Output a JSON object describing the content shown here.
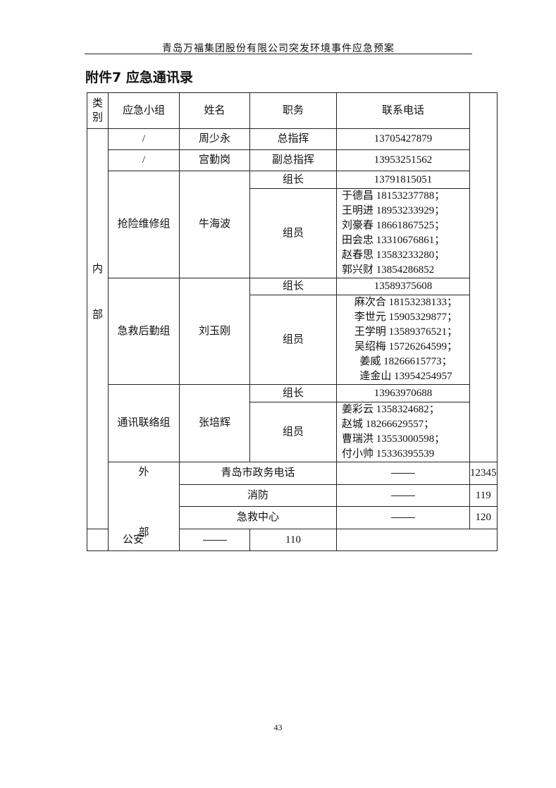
{
  "header": "青岛万福集团股份有限公司突发环境事件应急预案",
  "title": "附件7 应急通讯录",
  "columns": [
    "类别",
    "应急小组",
    "姓名",
    "职务",
    "联系电话"
  ],
  "internal": {
    "category": [
      "内",
      "部"
    ],
    "rows": [
      {
        "group": "/",
        "name": "周少永",
        "role": "总指挥",
        "phone": "13705427879"
      },
      {
        "group": "/",
        "name": "宫勤岗",
        "role": "副总指挥",
        "phone": "13953251562"
      }
    ],
    "groups": [
      {
        "group": "抢险维修组",
        "name": "牛海波",
        "leader_role": "组长",
        "leader_phone": "13791815051",
        "member_role": "组员",
        "members": [
          "于德昌 18153237788；",
          "王明进 18953233929；",
          "刘豪春 18661867525；",
          "田会忠 13310676861；",
          "赵春思 13583233280；",
          "郭兴财 13854286852"
        ]
      },
      {
        "group": "急救后勤组",
        "name": "刘玉刚",
        "leader_role": "组长",
        "leader_phone": "13589375608",
        "member_role": "组员",
        "members": [
          "麻次合 18153238133；",
          "李世元 15905329877；",
          "王学明 13589376521；",
          "吴绍梅 15726264599；",
          "姜威 18266615773；",
          "逄金山 13954254957"
        ]
      },
      {
        "group": "通讯联络组",
        "name": "张培辉",
        "leader_role": "组长",
        "leader_phone": "13963970688",
        "member_role": "组员",
        "members": [
          "姜彩云 1358324682；",
          "赵城 18266629557；",
          "曹瑞洪 13553000598；",
          "付小帅 15336395539"
        ]
      }
    ]
  },
  "external": {
    "category": [
      "外",
      "部"
    ],
    "rows": [
      {
        "name": "青岛市政务电话",
        "role": "——",
        "phone": "12345"
      },
      {
        "name": "消防",
        "role": "——",
        "phone": "119"
      },
      {
        "name": "急救中心",
        "role": "——",
        "phone": "120"
      },
      {
        "name": "公安",
        "role": "——",
        "phone": "110"
      }
    ]
  },
  "page_number": "43"
}
